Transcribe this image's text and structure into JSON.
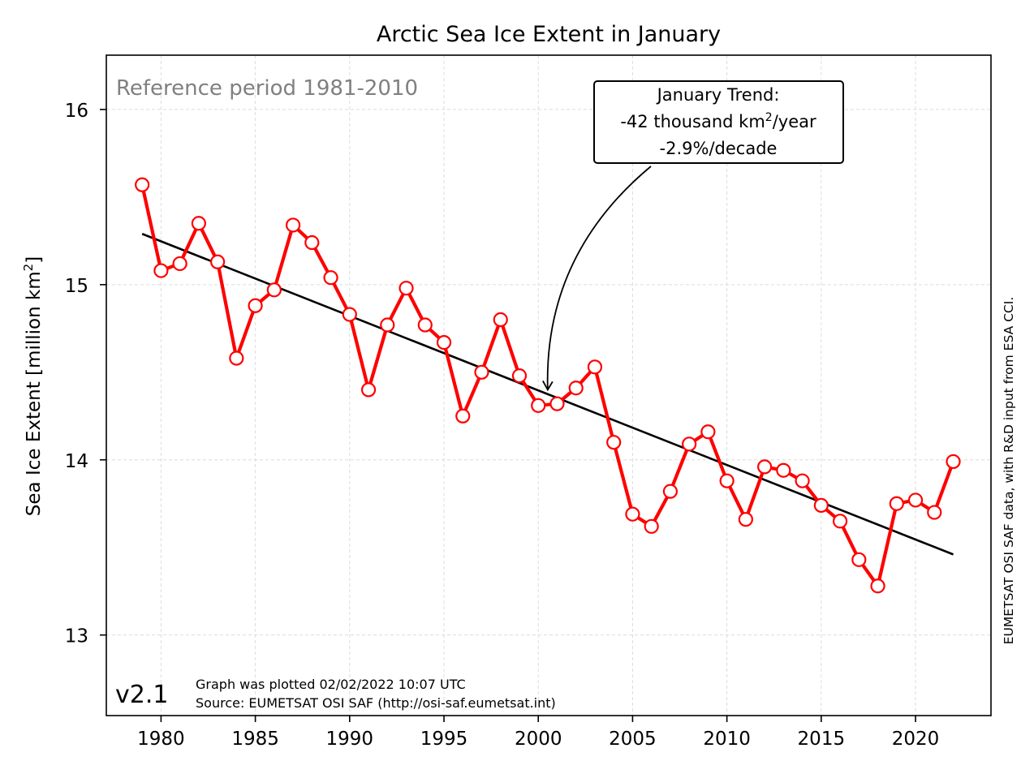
{
  "chart_data": {
    "type": "line",
    "title": "Arctic Sea Ice Extent in January",
    "ylabel": "Sea Ice Extent [million km²]",
    "ylabel_main": "Sea Ice Extent [million km",
    "ylabel_sup": "2",
    "ylabel_end": "]",
    "xlabel": "",
    "xlim": [
      1977.1,
      2024.0
    ],
    "ylim": [
      12.54,
      16.31
    ],
    "xticks": [
      1980,
      1985,
      1990,
      1995,
      2000,
      2005,
      2010,
      2015,
      2020
    ],
    "xtick_labels": [
      "1980",
      "1985",
      "1990",
      "1995",
      "2000",
      "2005",
      "2010",
      "2015",
      "2020"
    ],
    "yticks": [
      13,
      14,
      15,
      16
    ],
    "ytick_labels": [
      "13",
      "14",
      "15",
      "16"
    ],
    "grid": true,
    "series": [
      {
        "kind": "observed",
        "color": "#ff0000",
        "x": [
          1979,
          1980,
          1981,
          1982,
          1983,
          1984,
          1985,
          1986,
          1987,
          1988,
          1989,
          1990,
          1991,
          1992,
          1993,
          1994,
          1995,
          1996,
          1997,
          1998,
          1999,
          2000,
          2001,
          2002,
          2003,
          2004,
          2005,
          2006,
          2007,
          2008,
          2009,
          2010,
          2011,
          2012,
          2013,
          2014,
          2015,
          2016,
          2017,
          2018,
          2019,
          2020,
          2021,
          2022
        ],
        "values": [
          15.57,
          15.08,
          15.12,
          15.35,
          15.13,
          14.58,
          14.88,
          14.97,
          15.34,
          15.24,
          15.04,
          14.83,
          14.4,
          14.77,
          14.98,
          14.77,
          14.67,
          14.25,
          14.5,
          14.8,
          14.48,
          14.31,
          14.32,
          14.41,
          14.53,
          14.1,
          13.69,
          13.62,
          13.82,
          14.09,
          14.16,
          13.88,
          13.66,
          13.96,
          13.94,
          13.88,
          13.74,
          13.65,
          13.43,
          13.28,
          13.75,
          13.77,
          13.7,
          13.99
        ]
      },
      {
        "kind": "trend",
        "color": "#000000",
        "x": [
          1979,
          2022
        ],
        "values": [
          15.29,
          13.46
        ]
      }
    ],
    "annotations": {
      "reference": "Reference period 1981-2010",
      "trend_box": {
        "line1": "January Trend:",
        "line2_main": "-42 thousand km",
        "line2_sup": "2",
        "line2_end": "/year",
        "line3": "-2.9%/decade",
        "arrow_target": {
          "x": 2000.5,
          "y": 14.4
        }
      },
      "version": "v2.1",
      "plotted": "Graph was plotted 02/02/2022 10:07 UTC",
      "source": "Source: EUMETSAT OSI SAF (http://osi-saf.eumetsat.int)",
      "credit": "EUMETSAT OSI SAF data, with R&D input from ESA CCI."
    }
  }
}
